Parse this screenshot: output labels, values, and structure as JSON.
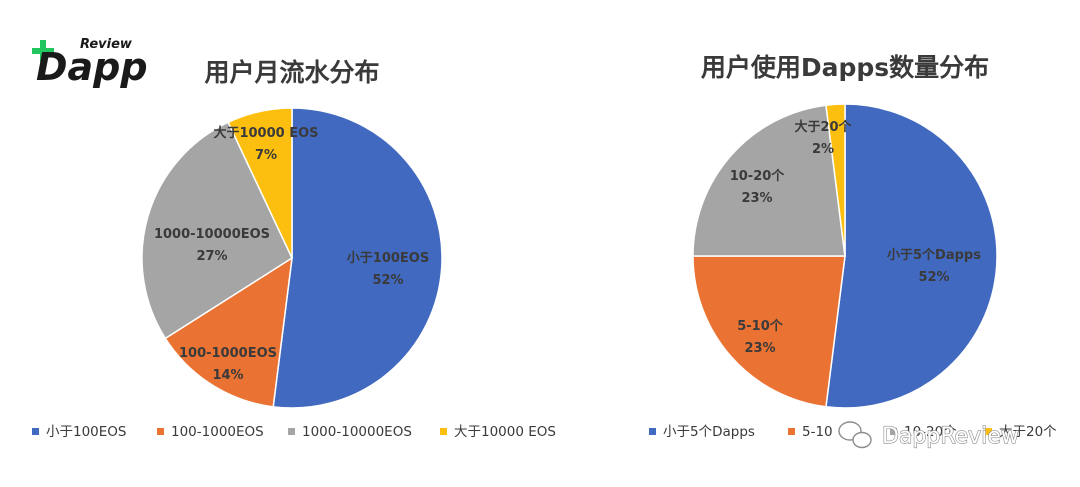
{
  "logo": {
    "review": "Review",
    "dapp": "Dapp",
    "accent_color": "#22c55e"
  },
  "watermark": {
    "text": "DappReview",
    "icon": "wechat-icon"
  },
  "colors": {
    "blue": "#4169c0",
    "orange": "#ea7232",
    "gray": "#a5a5a5",
    "yellow": "#fdbf0f"
  },
  "chart_data": [
    {
      "type": "pie",
      "title": "用户月流水分布",
      "categories": [
        "小于100EOS",
        "100-1000EOS",
        "1000-10000EOS",
        "大于10000 EOS"
      ],
      "values": [
        52,
        14,
        27,
        7
      ],
      "unit": "%",
      "slice_labels": [
        "小于100EOS",
        "100-1000EOS",
        "1000-10000EOS",
        "大于10000 EOS"
      ],
      "legend": [
        "小于100EOS",
        "100-1000EOS",
        "1000-10000EOS",
        "大于10000 EOS"
      ],
      "legend_position": "bottom"
    },
    {
      "type": "pie",
      "title": "用户使用Dapps数量分布",
      "categories": [
        "小于5个Dapps",
        "5-10个",
        "10-20个",
        "大于20个"
      ],
      "values": [
        52,
        23,
        23,
        2
      ],
      "unit": "%",
      "slice_labels": [
        "小于5个Dapps",
        "5-10个",
        "10-20个",
        "大于20个"
      ],
      "legend": [
        "小于5个Dapps",
        "5-10",
        "10-20个",
        "大于20个"
      ],
      "legend_position": "bottom"
    }
  ]
}
